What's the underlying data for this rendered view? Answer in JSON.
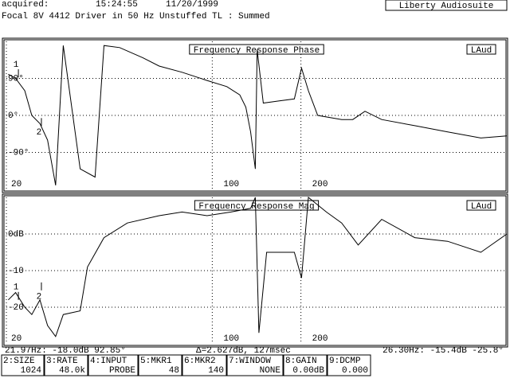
{
  "header": {
    "acquired_label": "acquired:",
    "time": "15:24:55",
    "date": "11/20/1999",
    "app": "Liberty Audiosuite",
    "description": "Focal 8V 4412 Driver in 50 Hz Unstuffed TL : Summed"
  },
  "chart_data": [
    {
      "type": "line",
      "title": "Frequency Response Phase",
      "badge": "LAud",
      "x": [
        20.3,
        21.5,
        23.1,
        24.4,
        26.0,
        27.6,
        29.4,
        31.2,
        35.6,
        40.0,
        42.9,
        48.5,
        58.2,
        66,
        79,
        96,
        112,
        124,
        130,
        135,
        140,
        142,
        149,
        168,
        190,
        201,
        212,
        228,
        275,
        300,
        330,
        376,
        487,
        630,
        816,
        1000
      ],
      "values": [
        100,
        90,
        60,
        0,
        -20,
        -60,
        -170,
        170,
        -130,
        -150,
        170,
        165,
        140,
        120,
        105,
        85,
        70,
        50,
        20,
        -40,
        -130,
        160,
        30,
        35,
        40,
        115,
        60,
        0,
        -10,
        -10,
        10,
        -10,
        -25,
        -40,
        -55,
        -50
      ],
      "color": "#000000",
      "xscale": "log",
      "xlim": [
        20,
        1000
      ],
      "xticks": [
        20,
        100,
        200
      ],
      "ylim": [
        -180,
        180
      ],
      "yticks": [
        {
          "value": 90,
          "label": "90°"
        },
        {
          "value": 0,
          "label": "0°"
        },
        {
          "value": -90,
          "label": "-90°"
        }
      ],
      "grid": true,
      "markers": [
        {
          "label": "1",
          "x": 21.97,
          "y": 92.85
        },
        {
          "label": "2",
          "x": 26.3,
          "y": -25.8
        }
      ]
    },
    {
      "type": "line",
      "title": "Frequency Response Mag",
      "badge": "LAud",
      "x": [
        20.3,
        21.5,
        23.1,
        24.4,
        26.0,
        27.6,
        29.4,
        31.2,
        35.6,
        37.7,
        42.9,
        51.5,
        66,
        79,
        96,
        115.7,
        135,
        140,
        144,
        153,
        168,
        190,
        201,
        212,
        244,
        275,
        313,
        376,
        487,
        630,
        816,
        1000
      ],
      "values": [
        -18,
        -16,
        -20,
        -22,
        -18,
        -25,
        -28,
        -22,
        -21,
        -9,
        -1,
        3,
        5,
        6,
        5,
        6,
        7,
        10,
        -27,
        -5,
        -5,
        -5,
        -12,
        10,
        6,
        3,
        -3,
        4,
        -1,
        -2,
        -5,
        0
      ],
      "color": "#000000",
      "xscale": "log",
      "xlim": [
        20,
        1000
      ],
      "xticks": [
        20,
        100,
        200
      ],
      "ylim": [
        -30,
        10
      ],
      "yticks": [
        {
          "value": 0,
          "label": "0dB"
        },
        -10,
        -20
      ],
      "grid": true,
      "markers": [
        {
          "label": "1",
          "x": 21.97,
          "y": -18.0
        },
        {
          "label": "2",
          "x": 26.3,
          "y": -15.4
        }
      ]
    }
  ],
  "status": {
    "marker1": "21.97Hz: -18.0dB  92.85°",
    "delta": "Δ=2.627dB, 127msec",
    "marker2": "26.30Hz: -15.4dB -25.8°"
  },
  "function_keys": [
    {
      "key": "2:SIZE",
      "value": "1024"
    },
    {
      "key": "3:RATE",
      "value": "48.0k"
    },
    {
      "key": "4:INPUT",
      "value": "PROBE"
    },
    {
      "key": "5:MKR1",
      "value": "48"
    },
    {
      "key": "6:MKR2",
      "value": "140"
    },
    {
      "key": "7:WINDOW",
      "value": "NONE"
    },
    {
      "key": "8:GAIN",
      "value": "0.00dB"
    },
    {
      "key": "9:DCMP",
      "value": "0.000"
    }
  ]
}
